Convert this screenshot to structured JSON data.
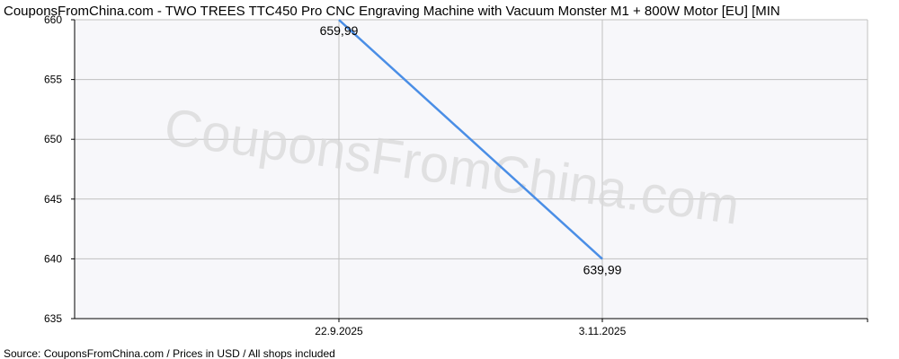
{
  "title": "CouponsFromChina.com - TWO TREES TTC450 Pro CNC Engraving Machine with Vacuum Monster M1 + 800W Motor [EU] [MIN",
  "watermark": "CouponsFromChina.com",
  "footer": "Source: CouponsFromChina.com / Prices in USD / All shops included",
  "colors": {
    "line": "#4a8ee6",
    "grid": "#c0c0c0",
    "plot_background": "#f7f7fa",
    "axis": "#000000"
  },
  "chart_data": {
    "type": "line",
    "title": "CouponsFromChina.com - TWO TREES TTC450 Pro CNC Engraving Machine with Vacuum Monster M1 + 800W Motor [EU] [MIN",
    "xlabel": "",
    "ylabel": "",
    "x": [
      "22.9.2025",
      "3.11.2025"
    ],
    "values": [
      659.99,
      639.99
    ],
    "data_labels": [
      "659,99",
      "639,99"
    ],
    "x_ticks": [
      "22.9.2025",
      "3.11.2025"
    ],
    "y_ticks": [
      "635",
      "640",
      "645",
      "650",
      "655",
      "660"
    ],
    "y_tick_values": [
      635,
      640,
      645,
      650,
      655,
      660
    ],
    "ylim": [
      635,
      660
    ],
    "grid": true,
    "legend": "none"
  }
}
